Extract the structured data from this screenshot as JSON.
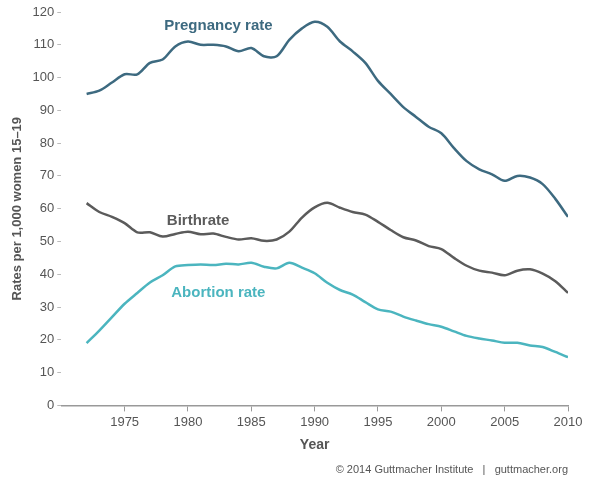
{
  "chart_data": {
    "type": "line",
    "y_label": "Rates per 1,000 women 15–19",
    "x_label": "Year",
    "source": "© 2014 Guttmacher Institute   |   guttmacher.org",
    "x": [
      1972,
      1973,
      1974,
      1975,
      1976,
      1977,
      1978,
      1979,
      1980,
      1981,
      1982,
      1983,
      1984,
      1985,
      1986,
      1987,
      1988,
      1989,
      1990,
      1991,
      1992,
      1993,
      1994,
      1995,
      1996,
      1997,
      1998,
      1999,
      2000,
      2001,
      2002,
      2003,
      2004,
      2005,
      2006,
      2007,
      2008,
      2009,
      2010
    ],
    "series": [
      {
        "name": "Pregnancy rate",
        "color": "#3d6a80",
        "values": [
          95,
          96,
          98.5,
          101,
          101,
          104.5,
          105.5,
          109.5,
          111,
          110,
          110,
          109.5,
          108,
          109,
          106.5,
          106.5,
          111.5,
          115,
          117,
          115.5,
          111,
          108,
          104.5,
          99,
          95,
          91,
          88,
          85,
          83,
          78.5,
          74.5,
          72,
          70.5,
          68.5,
          70,
          69.5,
          67.5,
          63,
          57.5
        ]
      },
      {
        "name": "Birthrate",
        "color": "#5b5b5b",
        "values": [
          61.7,
          59,
          57.5,
          55.6,
          52.8,
          52.8,
          51.5,
          52.3,
          53,
          52.2,
          52.4,
          51.4,
          50.6,
          51,
          50.2,
          50.6,
          53,
          57.3,
          60.4,
          61.8,
          60.3,
          59,
          58.2,
          56,
          53.5,
          51.3,
          50.3,
          48.6,
          47.7,
          45,
          42.6,
          41.1,
          40.5,
          39.7,
          41.1,
          41.5,
          40.2,
          37.9,
          34.3
        ]
      },
      {
        "name": "Abortion rate",
        "color": "#4bb5bf",
        "values": [
          19,
          22.8,
          26.9,
          31,
          34.3,
          37.5,
          39.7,
          42.4,
          42.8,
          43,
          42.8,
          43.2,
          43,
          43.5,
          42.3,
          41.8,
          43.5,
          42,
          40.3,
          37.4,
          35.2,
          33.8,
          31.5,
          29.3,
          28.6,
          27.1,
          25.9,
          24.8,
          24,
          22.6,
          21.2,
          20.4,
          19.8,
          19.1,
          19.1,
          18.3,
          17.8,
          16.3,
          14.7
        ]
      }
    ],
    "xlim": [
      1970,
      2010
    ],
    "xticks": [
      1975,
      1980,
      1985,
      1990,
      1995,
      2000,
      2005,
      2010
    ],
    "ylim": [
      0,
      120
    ],
    "yticks": [
      0,
      10,
      20,
      30,
      40,
      50,
      60,
      70,
      80,
      90,
      100,
      110,
      120
    ],
    "grid": false
  }
}
